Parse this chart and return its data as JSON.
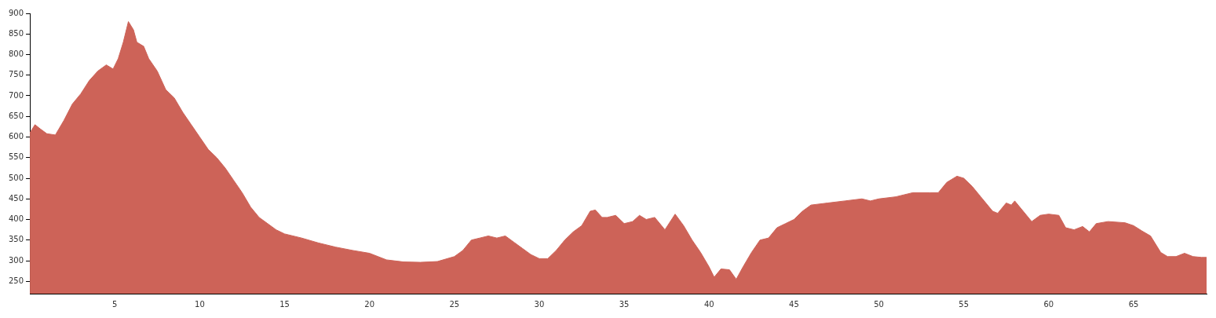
{
  "chart_data": {
    "type": "area",
    "x": [
      0,
      0.3,
      0.6,
      1,
      1.5,
      2,
      2.5,
      3,
      3.5,
      4,
      4.5,
      4.9,
      5.2,
      5.5,
      5.8,
      6.1,
      6.3,
      6.7,
      7,
      7.5,
      8,
      8.5,
      9,
      9.5,
      10,
      10.5,
      11,
      11.5,
      12,
      12.5,
      13,
      13.5,
      14,
      14.5,
      15,
      16,
      17,
      18,
      19,
      20,
      21,
      22,
      23,
      24,
      25,
      25.5,
      26,
      26.5,
      27,
      27.5,
      28,
      28.5,
      29,
      29.5,
      30,
      30.5,
      31,
      31.5,
      32,
      32.5,
      33,
      33.3,
      33.7,
      34,
      34.5,
      35,
      35.5,
      35.9,
      36.3,
      36.8,
      37.4,
      38,
      38.5,
      39,
      39.5,
      40,
      40.3,
      40.7,
      41.2,
      41.6,
      42,
      42.5,
      43,
      43.5,
      44,
      44.5,
      45,
      45.5,
      46,
      47,
      48,
      49,
      49.5,
      50,
      51,
      52,
      53,
      53.5,
      54,
      54.6,
      55,
      55.5,
      56,
      56.7,
      57,
      57.5,
      57.8,
      58,
      58.5,
      59,
      59.5,
      60,
      60.6,
      61,
      61.5,
      62,
      62.4,
      62.8,
      63.5,
      64.5,
      65,
      65.5,
      66,
      66.6,
      67,
      67.5,
      68,
      68.5,
      69,
      69.3
    ],
    "series": [
      {
        "color": "#cd6358",
        "values": [
          610,
          630,
          620,
          608,
          605,
          640,
          680,
          705,
          737,
          760,
          775,
          765,
          790,
          830,
          880,
          860,
          830,
          820,
          790,
          760,
          715,
          695,
          660,
          630,
          600,
          570,
          550,
          525,
          495,
          465,
          430,
          405,
          390,
          375,
          365,
          355,
          343,
          333,
          325,
          318,
          302,
          297,
          296,
          298,
          310,
          325,
          350,
          355,
          360,
          355,
          360,
          345,
          330,
          315,
          305,
          305,
          325,
          350,
          370,
          385,
          420,
          423,
          405,
          405,
          410,
          390,
          395,
          410,
          400,
          405,
          375,
          413,
          385,
          350,
          320,
          285,
          260,
          280,
          278,
          255,
          285,
          320,
          350,
          355,
          380,
          390,
          400,
          420,
          435,
          440,
          445,
          450,
          445,
          450,
          455,
          465,
          465,
          465,
          490,
          505,
          500,
          480,
          455,
          420,
          415,
          440,
          435,
          445,
          420,
          395,
          410,
          413,
          410,
          380,
          375,
          383,
          370,
          390,
          395,
          392,
          385,
          372,
          360,
          320,
          310,
          310,
          318,
          310,
          308,
          308
        ]
      }
    ],
    "xlim": [
      0,
      69.3
    ],
    "xticks": [
      5,
      10,
      15,
      20,
      25,
      30,
      35,
      40,
      45,
      50,
      55,
      60,
      65
    ],
    "ylim": [
      220,
      900
    ],
    "yticks": [
      250,
      300,
      350,
      400,
      450,
      500,
      550,
      600,
      650,
      700,
      750,
      800,
      850,
      900
    ],
    "grid": false,
    "legend": false
  }
}
